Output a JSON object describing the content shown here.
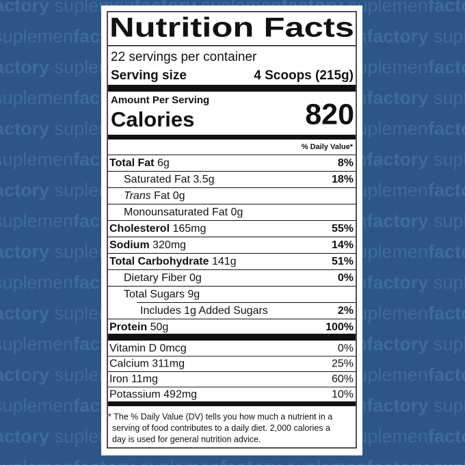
{
  "background": {
    "watermark": [
      "suplemen",
      "factory"
    ]
  },
  "label": {
    "title": "Nutrition Facts",
    "servings": "22 servings per container",
    "serving_size_label": "Serving size",
    "serving_size": "4 Scoops (215g)",
    "amount_per_serving": "Amount Per Serving",
    "calories_label": "Calories",
    "calories": "820",
    "dv_header": "% Daily Value*",
    "nutrients": [
      {
        "name": "Total Fat",
        "amount": "6g",
        "dv": "8%"
      },
      {
        "name": "Saturated Fat",
        "amount": "3.5g",
        "dv": "18%"
      },
      {
        "name_italic": "Trans",
        "name": "Fat",
        "amount": "0g"
      },
      {
        "name": "Monounsaturated Fat",
        "amount": "0g"
      },
      {
        "name": "Cholesterol",
        "amount": "165mg",
        "dv": "55%"
      },
      {
        "name": "Sodium",
        "amount": "320mg",
        "dv": "14%"
      },
      {
        "name": "Total Carbohydrate",
        "amount": "141g",
        "dv": "51%"
      },
      {
        "name": "Dietary Fiber",
        "amount": "0g",
        "dv": "0%"
      },
      {
        "name": "Total Sugars",
        "amount": "9g"
      },
      {
        "name": "Includes 1g Added Sugars",
        "dv": "2%"
      },
      {
        "name": "Protein",
        "amount": "50g",
        "dv": "100%"
      }
    ],
    "vitamins": [
      {
        "name": "Vitamin D",
        "amount": "0mcg",
        "dv": "0%"
      },
      {
        "name": "Calcium",
        "amount": "311mg",
        "dv": "25%"
      },
      {
        "name": "Iron",
        "amount": "11mg",
        "dv": "60%"
      },
      {
        "name": "Potassium",
        "amount": "492mg",
        "dv": "10%"
      }
    ],
    "footnote": [
      "* The % Daily Value (DV) tells you how much a nutrient in a",
      "serving of food contributes to a daily diet. 2,000 calories a",
      "day is used for general nutrition advice."
    ]
  }
}
